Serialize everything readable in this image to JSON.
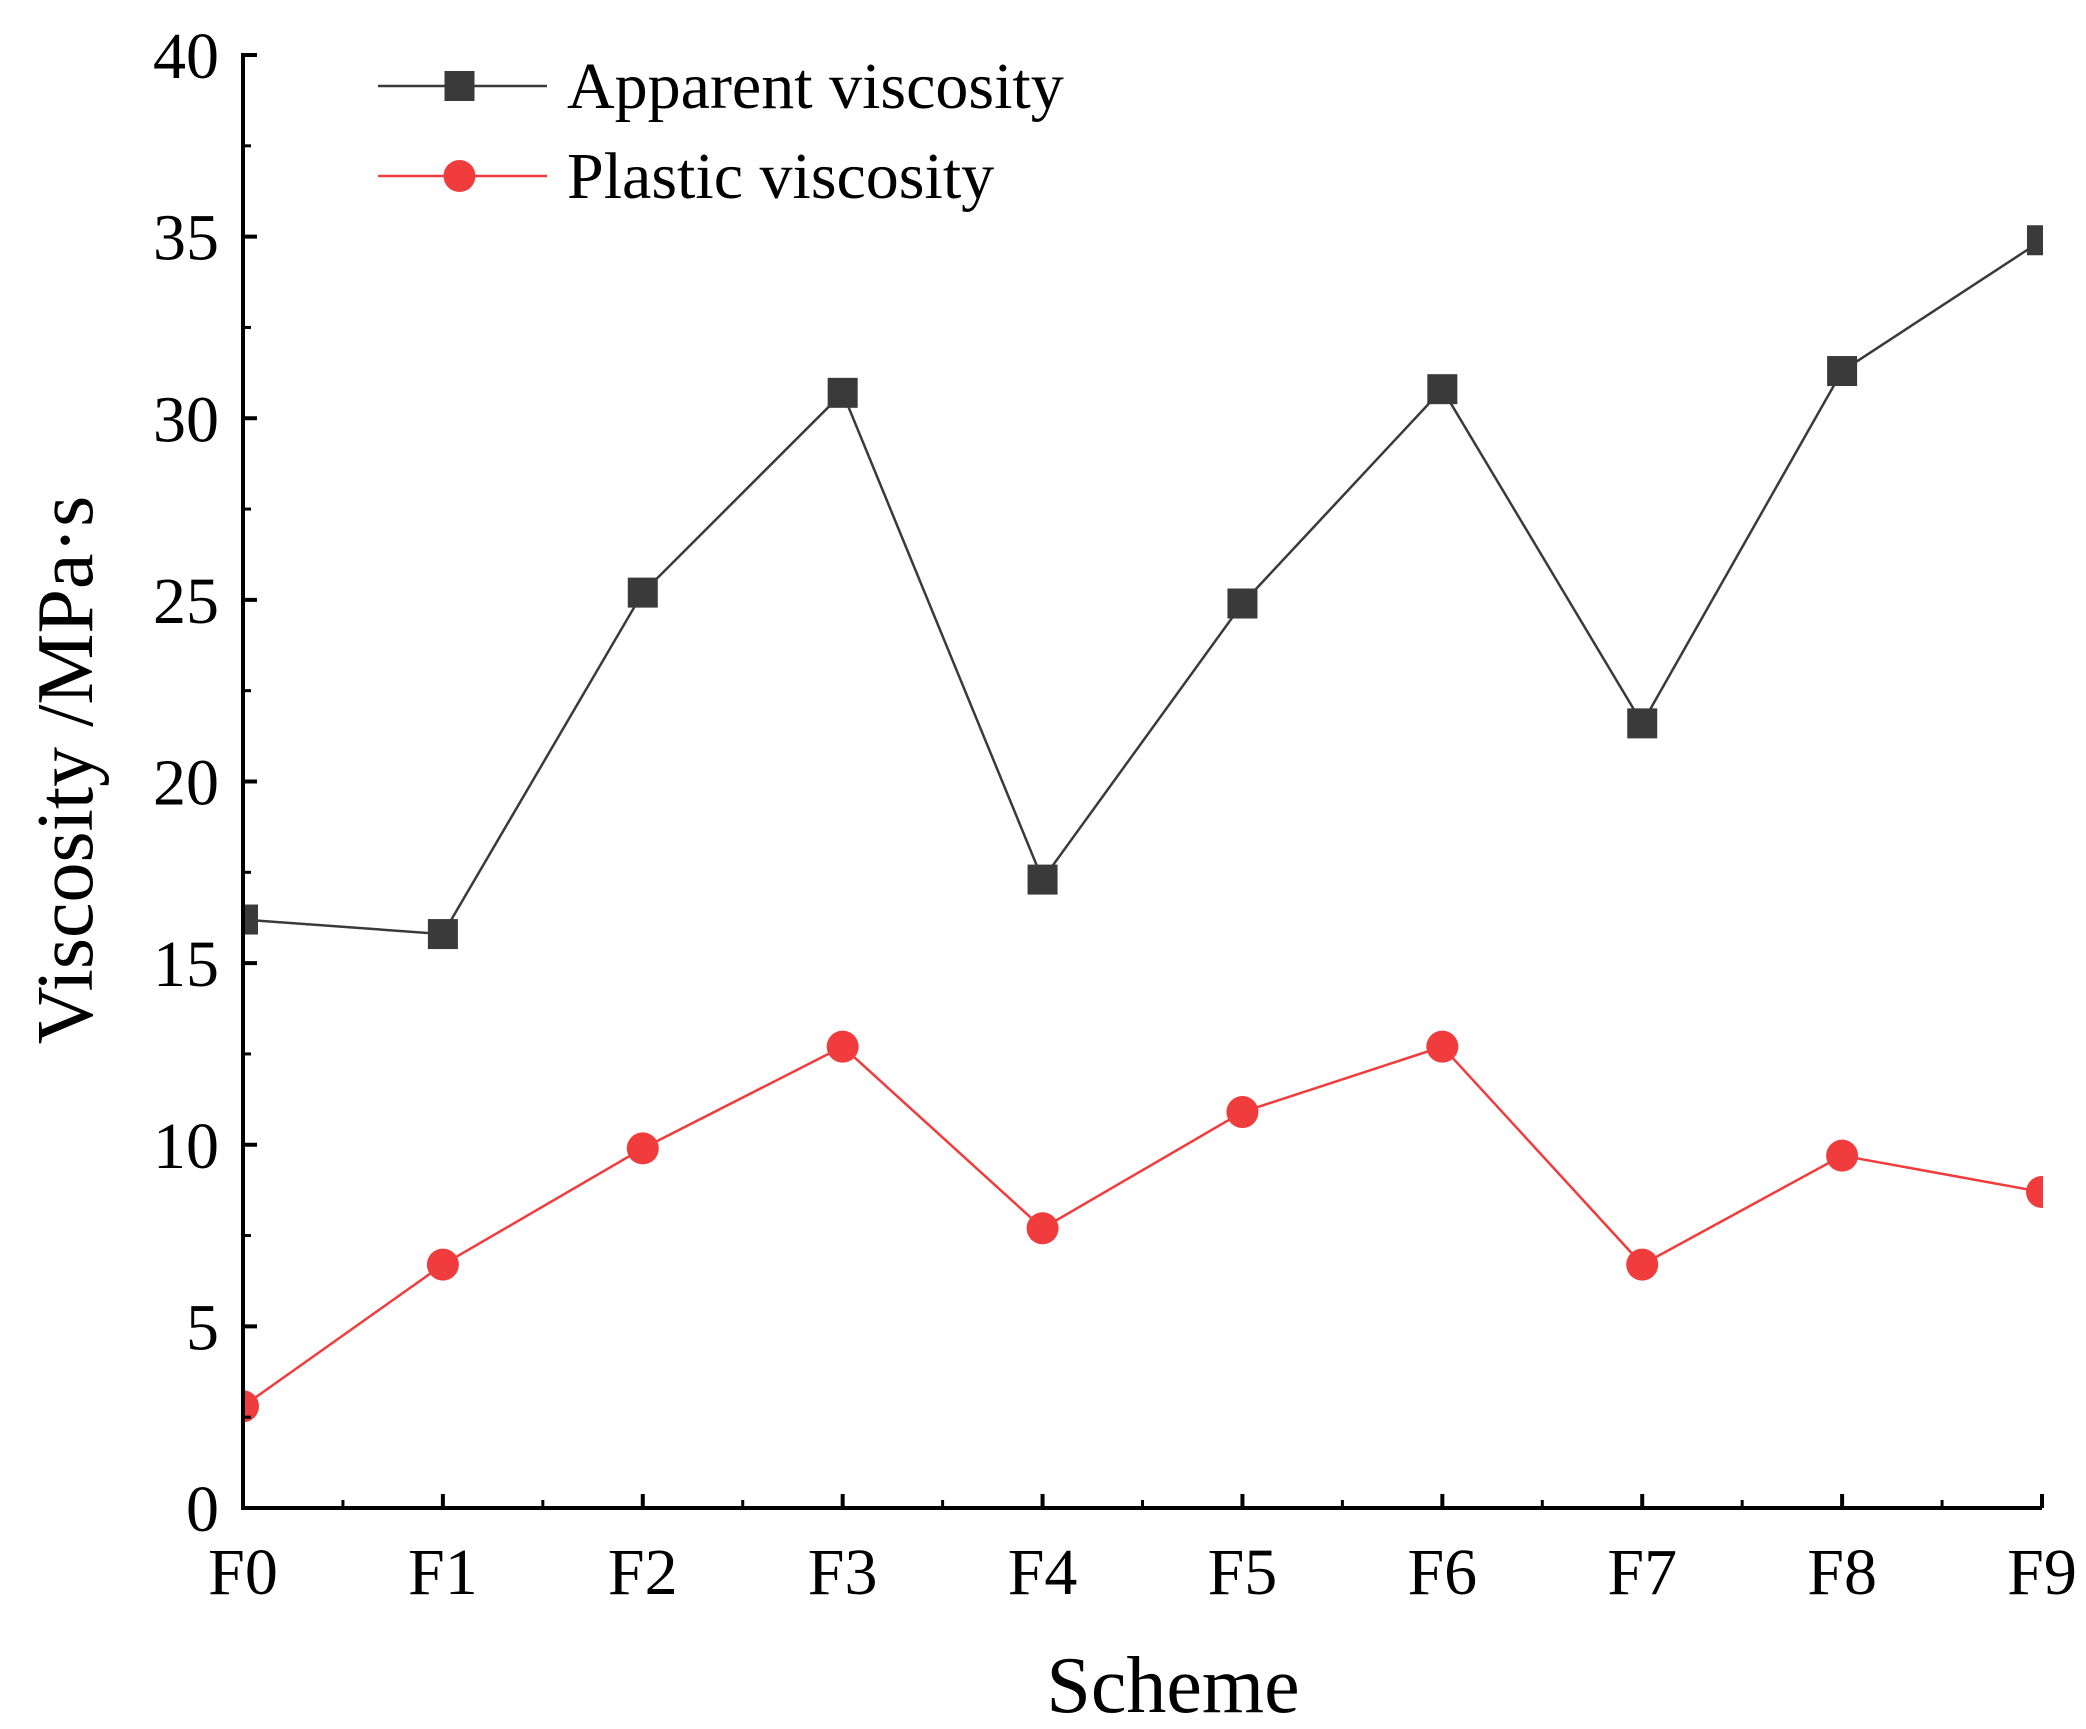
{
  "chart_data": {
    "type": "line",
    "title": "",
    "xlabel": "Scheme",
    "ylabel": "Viscosity /MPa·s",
    "categories": [
      "F0",
      "F1",
      "F2",
      "F3",
      "F4",
      "F5",
      "F6",
      "F7",
      "F8",
      "F9"
    ],
    "ylim": [
      0,
      40
    ],
    "yticks": [
      0,
      5,
      10,
      15,
      20,
      25,
      30,
      35,
      40
    ],
    "yticks_labels": [
      "0",
      "5",
      "10",
      "15",
      "20",
      "25",
      "30",
      "35",
      "40"
    ],
    "grid": false,
    "legend_position": "top-left",
    "series": [
      {
        "name": "Apparent viscosity",
        "marker": "square",
        "color": "#3a3a3a",
        "values": [
          16.2,
          15.8,
          25.2,
          30.7,
          17.3,
          24.9,
          30.8,
          21.6,
          31.3,
          34.9
        ]
      },
      {
        "name": "Plastic viscosity",
        "marker": "circle",
        "color": "#f03c3c",
        "values": [
          2.8,
          6.7,
          9.9,
          12.7,
          7.7,
          10.9,
          12.7,
          6.7,
          9.7,
          8.7
        ]
      }
    ]
  }
}
